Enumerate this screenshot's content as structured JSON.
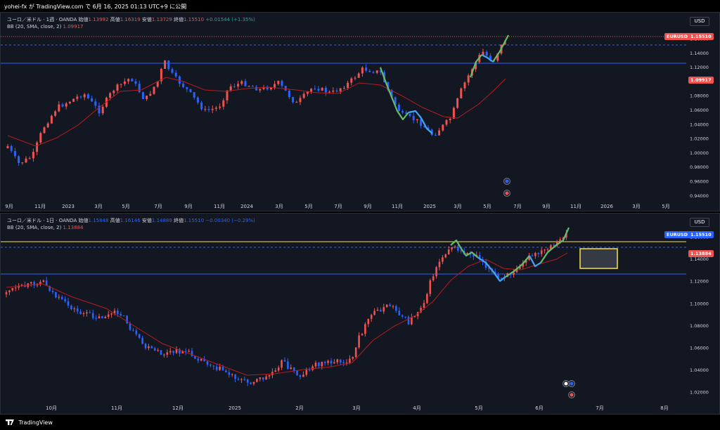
{
  "header": {
    "publish_text": "yohei-fx が TradingView.com で 6月 16, 2025 01:13 UTC+9 に公開"
  },
  "footer": {
    "brand": "TradingView"
  },
  "colors": {
    "up": "#ef5350",
    "down": "#2962ff",
    "bb": "#b71c1c",
    "curve": [
      "#66bb6a",
      "#42a5f5"
    ],
    "level_line": "#2962ff",
    "yellow": "#f9e44a"
  },
  "panels": [
    {
      "legend": {
        "symbol": "ユーロ／米ドル · 1週 · OANDA",
        "open_label": "始値",
        "open": "1.13992",
        "high_label": "高値",
        "high": "1.16319",
        "low_label": "安値",
        "low": "1.13729",
        "close_label": "終値",
        "close": "1.15510",
        "change": "+0.01544 (+1.35%)"
      },
      "indicator": {
        "name": "BB (20, SMA, close, 2)",
        "value": "1.09917"
      },
      "currency": "USD",
      "price_tag": {
        "symbol": "EURUSD",
        "value": "1.15510"
      },
      "bb_tag": "1.09917",
      "y_labels": [
        "1.16000",
        "1.14000",
        "1.12000",
        "1.10000",
        "1.08000",
        "1.06000",
        "1.04000",
        "1.02000",
        "1.00000",
        "0.98000",
        "0.96000",
        "0.94000"
      ],
      "x_labels": [
        "9月",
        "11月",
        "2023",
        "3月",
        "5月",
        "7月",
        "9月",
        "11月",
        "2024",
        "3月",
        "5月",
        "7月",
        "9月",
        "11月",
        "2025",
        "3月",
        "5月",
        "7月",
        "9月",
        "11月",
        "2026",
        "3月",
        "5月"
      ]
    },
    {
      "legend": {
        "symbol": "ユーロ／米ドル · 1日 · OANDA",
        "open_label": "始値",
        "open": "1.15848",
        "high_label": "高値",
        "high": "1.16146",
        "low_label": "安値",
        "low": "1.14889",
        "close_label": "終値",
        "close": "1.15510",
        "change": "−0.00340 (−0.29%)"
      },
      "indicator": {
        "name": "BB (20, SMA, close, 2)",
        "value": "1.13884"
      },
      "currency": "USD",
      "price_tag": {
        "symbol": "EURUSD",
        "value": "1.15510"
      },
      "bb_tag": "1.13884",
      "y_labels": [
        "1.16000",
        "1.14000",
        "1.12000",
        "1.10000",
        "1.08000",
        "1.06000",
        "1.04000",
        "1.02000"
      ],
      "x_labels": [
        "10月",
        "11月",
        "12月",
        "2025",
        "2月",
        "3月",
        "4月",
        "5月",
        "6月",
        "7月",
        "8月"
      ]
    }
  ]
}
